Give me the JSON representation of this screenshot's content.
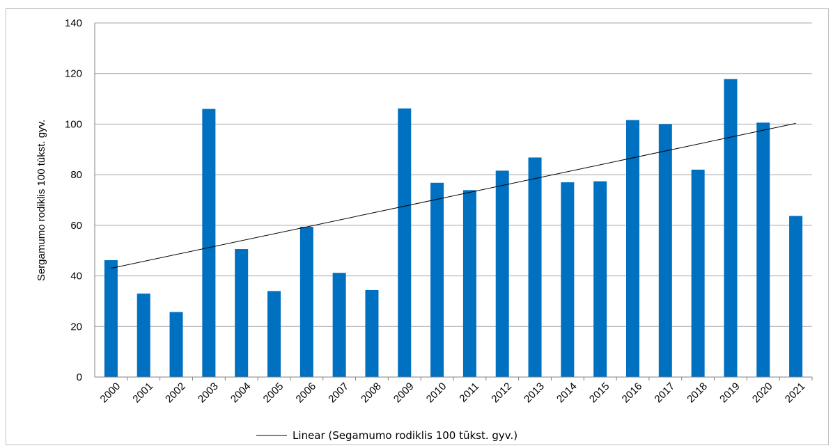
{
  "chart_data": {
    "type": "bar",
    "title": "",
    "xlabel": "",
    "ylabel": "Sergamumo rodiklis 100 tūkst. gyv.",
    "ylim": [
      0,
      140
    ],
    "yticks": [
      0,
      20,
      40,
      60,
      80,
      100,
      120,
      140
    ],
    "grid": true,
    "legend_position": "bottom",
    "categories": [
      "2000",
      "2001",
      "2002",
      "2003",
      "2004",
      "2005",
      "2006",
      "2007",
      "2008",
      "2009",
      "2010",
      "2011",
      "2012",
      "2013",
      "2014",
      "2015",
      "2016",
      "2017",
      "2018",
      "2019",
      "2020",
      "2021"
    ],
    "series": [
      {
        "values": [
          46.2,
          33.0,
          25.7,
          106.0,
          50.6,
          34.0,
          59.4,
          41.2,
          34.4,
          106.2,
          76.8,
          73.9,
          81.6,
          86.8,
          77.0,
          77.4,
          101.6,
          100.0,
          82.0,
          117.8,
          100.6,
          63.7
        ],
        "color": "#0070c0"
      }
    ],
    "trendline": {
      "type": "linear",
      "name": "Linear (Segamumo rodiklis 100 tūkst.  gyv.)",
      "start_value": 43.0,
      "end_value": 100.3,
      "color": "#000000"
    }
  }
}
